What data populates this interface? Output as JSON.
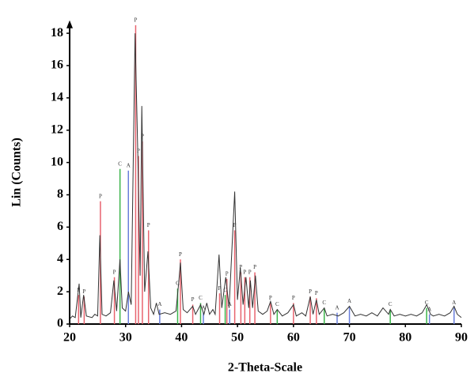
{
  "chart_data": {
    "type": "line",
    "xlabel": "2-Theta-Scale",
    "ylabel": "Lin (Counts)",
    "xlim": [
      20,
      90
    ],
    "ylim": [
      0,
      18.8
    ],
    "xticks": [
      20,
      30,
      40,
      50,
      60,
      70,
      80,
      90
    ],
    "yticks": [
      0,
      2,
      4,
      6,
      8,
      10,
      12,
      14,
      16,
      18
    ],
    "color": "#333333",
    "x": [
      20,
      20.5,
      21,
      21.7,
      22,
      22.5,
      23,
      24,
      24.5,
      25,
      25.4,
      25.8,
      26.5,
      27.3,
      27.9,
      28.4,
      29,
      29.4,
      30,
      30.5,
      31,
      31.7,
      32.2,
      32.6,
      32.9,
      33.4,
      34,
      34.5,
      35,
      35.5,
      36,
      37,
      38,
      39,
      39.5,
      39.8,
      40.3,
      41,
      42,
      42.5,
      43.4,
      44,
      44.5,
      45,
      45.6,
      46,
      46.7,
      47.2,
      47.9,
      48.5,
      49.5,
      50,
      50.5,
      51,
      51.5,
      52,
      52.3,
      52.7,
      53.2,
      53.7,
      54.5,
      55.3,
      55.9,
      56.5,
      57.1,
      58,
      59,
      60,
      60.5,
      61.5,
      62.2,
      63,
      63.5,
      64.1,
      64.6,
      65.5,
      66,
      67,
      68,
      69,
      70,
      71,
      72,
      73,
      74,
      75,
      76,
      77,
      77.3,
      78,
      79,
      80,
      81,
      82,
      83,
      83.8,
      84.5,
      85,
      86,
      87,
      88,
      88.7,
      89.3,
      90
    ],
    "values": [
      0.3,
      0.5,
      0.4,
      2.5,
      0.4,
      1.8,
      0.5,
      0.4,
      0.6,
      0.5,
      5.5,
      0.6,
      0.5,
      0.7,
      2.7,
      0.8,
      4.0,
      1.0,
      0.8,
      2.0,
      1.2,
      18.0,
      10.2,
      3.0,
      13.5,
      2.0,
      4.5,
      1.0,
      0.6,
      1.3,
      0.6,
      0.7,
      0.6,
      0.8,
      2.6,
      3.8,
      0.9,
      0.7,
      1.1,
      0.6,
      1.2,
      0.6,
      1.3,
      0.6,
      0.9,
      0.6,
      4.3,
      1.0,
      2.9,
      1.0,
      8.2,
      1.5,
      3.5,
      1.2,
      2.9,
      1.0,
      2.7,
      1.0,
      3.0,
      0.8,
      0.6,
      0.8,
      1.4,
      0.6,
      0.9,
      0.5,
      0.7,
      1.2,
      0.5,
      0.7,
      0.5,
      1.7,
      0.6,
      1.5,
      0.6,
      1.0,
      0.5,
      0.6,
      0.5,
      0.7,
      1.1,
      0.5,
      0.6,
      0.5,
      0.7,
      0.5,
      1.0,
      0.6,
      0.9,
      0.5,
      0.6,
      0.5,
      0.6,
      0.5,
      0.7,
      1.2,
      0.6,
      0.5,
      0.6,
      0.5,
      0.7,
      1.1,
      0.6,
      0.4
    ],
    "sticks": [
      {
        "name": "P",
        "color": "#e8636e",
        "x": [
          21.6,
          22.6,
          25.5,
          28.0,
          31.8,
          32.3,
          33.0,
          34.1,
          39.8,
          42.0,
          46.8,
          48.1,
          49.5,
          50.6,
          51.3,
          52.2,
          53.1,
          55.9,
          60.0,
          63.0,
          64.1
        ],
        "values": [
          1.8,
          1.7,
          7.6,
          2.9,
          18.5,
          10.4,
          11.3,
          5.8,
          4.0,
          1.2,
          1.9,
          2.8,
          5.8,
          3.2,
          2.9,
          2.9,
          3.2,
          1.3,
          1.3,
          1.7,
          1.6
        ]
      },
      {
        "name": "C",
        "color": "#3cb44b",
        "x": [
          29.0,
          39.3,
          43.4,
          47.8,
          57.1,
          65.5,
          77.3,
          83.8
        ],
        "values": [
          9.6,
          2.2,
          1.3,
          1.8,
          0.9,
          1.0,
          0.9,
          1.0
        ]
      },
      {
        "name": "A",
        "color": "#6a7fdb",
        "x": [
          30.5,
          36.1,
          43.9,
          48.6,
          67.8,
          70.0,
          84.3,
          88.7
        ],
        "values": [
          9.5,
          0.9,
          0.7,
          0.9,
          0.7,
          1.1,
          0.6,
          1.0
        ]
      }
    ]
  }
}
